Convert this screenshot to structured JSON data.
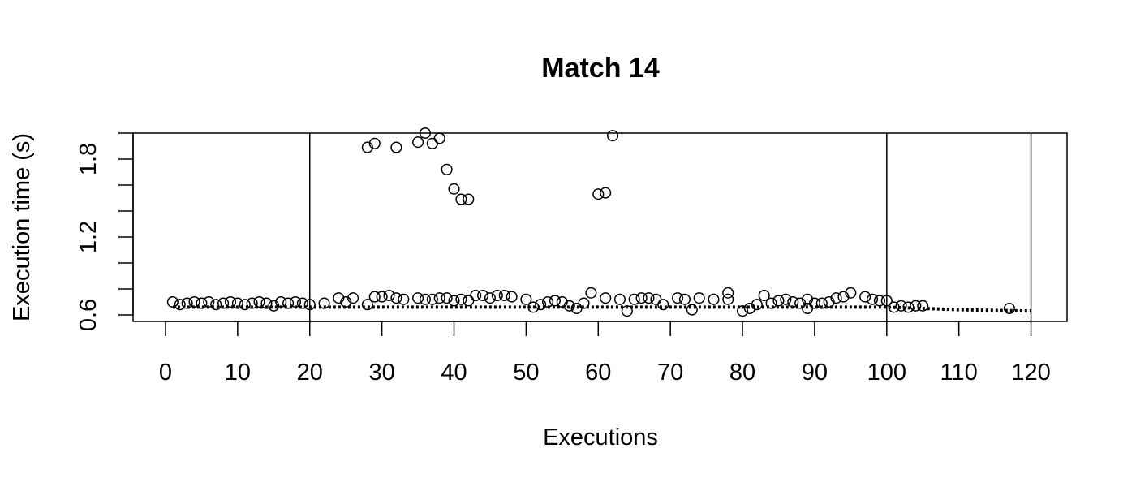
{
  "chart_data": {
    "type": "scatter",
    "title": "Match 14",
    "xlabel": "Executions",
    "ylabel": "Execution time (s)",
    "xlim": [
      -4.5,
      125
    ],
    "ylim": [
      0.55,
      2.0
    ],
    "x_ticks": [
      0,
      10,
      20,
      30,
      40,
      50,
      60,
      70,
      80,
      90,
      100,
      110,
      120
    ],
    "x_tick_labels": [
      "0",
      "10",
      "20",
      "30",
      "40",
      "50",
      "60",
      "70",
      "80",
      "90",
      "100",
      "110",
      "120"
    ],
    "y_ticks": [
      0.6,
      0.8,
      1.0,
      1.2,
      1.4,
      1.6,
      1.8,
      2.0
    ],
    "y_tick_labels": [
      "0.6",
      "",
      "",
      "1.2",
      "",
      "",
      "1.8",
      ""
    ],
    "vlines": [
      20,
      100,
      120
    ],
    "grid": false,
    "legend": "none",
    "series": [
      {
        "marker": "open-circle",
        "color": "#000000",
        "points": [
          [
            1,
            0.7
          ],
          [
            2,
            0.68
          ],
          [
            3,
            0.69
          ],
          [
            4,
            0.7
          ],
          [
            5,
            0.69
          ],
          [
            6,
            0.7
          ],
          [
            7,
            0.68
          ],
          [
            8,
            0.69
          ],
          [
            9,
            0.7
          ],
          [
            10,
            0.69
          ],
          [
            11,
            0.68
          ],
          [
            12,
            0.69
          ],
          [
            13,
            0.7
          ],
          [
            14,
            0.69
          ],
          [
            15,
            0.67
          ],
          [
            16,
            0.7
          ],
          [
            17,
            0.69
          ],
          [
            18,
            0.7
          ],
          [
            19,
            0.69
          ],
          [
            20,
            0.68
          ],
          [
            22,
            0.69
          ],
          [
            24,
            0.73
          ],
          [
            25,
            0.7
          ],
          [
            26,
            0.73
          ],
          [
            28,
            0.68
          ],
          [
            29,
            0.74
          ],
          [
            30,
            0.74
          ],
          [
            31,
            0.75
          ],
          [
            32,
            0.73
          ],
          [
            33,
            0.72
          ],
          [
            35,
            0.73
          ],
          [
            36,
            0.72
          ],
          [
            37,
            0.72
          ],
          [
            38,
            0.73
          ],
          [
            39,
            0.73
          ],
          [
            40,
            0.71
          ],
          [
            41,
            0.72
          ],
          [
            42,
            0.71
          ],
          [
            43,
            0.75
          ],
          [
            44,
            0.75
          ],
          [
            45,
            0.73
          ],
          [
            46,
            0.75
          ],
          [
            47,
            0.75
          ],
          [
            48,
            0.74
          ],
          [
            50,
            0.72
          ],
          [
            51,
            0.66
          ],
          [
            52,
            0.68
          ],
          [
            53,
            0.7
          ],
          [
            54,
            0.71
          ],
          [
            55,
            0.7
          ],
          [
            56,
            0.67
          ],
          [
            57,
            0.65
          ],
          [
            58,
            0.69
          ],
          [
            59,
            0.77
          ],
          [
            61,
            0.73
          ],
          [
            63,
            0.72
          ],
          [
            64,
            0.63
          ],
          [
            65,
            0.72
          ],
          [
            66,
            0.73
          ],
          [
            67,
            0.73
          ],
          [
            68,
            0.72
          ],
          [
            69,
            0.68
          ],
          [
            71,
            0.73
          ],
          [
            72,
            0.72
          ],
          [
            73,
            0.64
          ],
          [
            74,
            0.73
          ],
          [
            76,
            0.72
          ],
          [
            78,
            0.77
          ],
          [
            78,
            0.72
          ],
          [
            80,
            0.63
          ],
          [
            81,
            0.65
          ],
          [
            82,
            0.68
          ],
          [
            83,
            0.75
          ],
          [
            84,
            0.69
          ],
          [
            85,
            0.71
          ],
          [
            86,
            0.72
          ],
          [
            87,
            0.7
          ],
          [
            88,
            0.69
          ],
          [
            89,
            0.72
          ],
          [
            89,
            0.65
          ],
          [
            90,
            0.69
          ],
          [
            91,
            0.69
          ],
          [
            92,
            0.7
          ],
          [
            93,
            0.73
          ],
          [
            94,
            0.74
          ],
          [
            95,
            0.77
          ],
          [
            97,
            0.74
          ],
          [
            98,
            0.72
          ],
          [
            99,
            0.71
          ],
          [
            100,
            0.71
          ],
          [
            101,
            0.66
          ],
          [
            102,
            0.67
          ],
          [
            103,
            0.66
          ],
          [
            104,
            0.67
          ],
          [
            105,
            0.67
          ],
          [
            117,
            0.65
          ],
          [
            28,
            1.89
          ],
          [
            29,
            1.92
          ],
          [
            32,
            1.89
          ],
          [
            35,
            1.93
          ],
          [
            36,
            2.0
          ],
          [
            37,
            1.92
          ],
          [
            38,
            1.96
          ],
          [
            39,
            1.72
          ],
          [
            40,
            1.57
          ],
          [
            41,
            1.49
          ],
          [
            42,
            1.49
          ],
          [
            60,
            1.53
          ],
          [
            61,
            1.54
          ],
          [
            62,
            1.98
          ]
        ]
      },
      {
        "marker": "dotted-line",
        "color": "#000000",
        "points": [
          [
            1,
            0.66
          ],
          [
            10,
            0.66
          ],
          [
            20,
            0.66
          ],
          [
            30,
            0.66
          ],
          [
            40,
            0.66
          ],
          [
            50,
            0.66
          ],
          [
            60,
            0.66
          ],
          [
            70,
            0.66
          ],
          [
            80,
            0.66
          ],
          [
            90,
            0.66
          ],
          [
            100,
            0.66
          ],
          [
            110,
            0.64
          ],
          [
            120,
            0.63
          ]
        ]
      }
    ]
  }
}
